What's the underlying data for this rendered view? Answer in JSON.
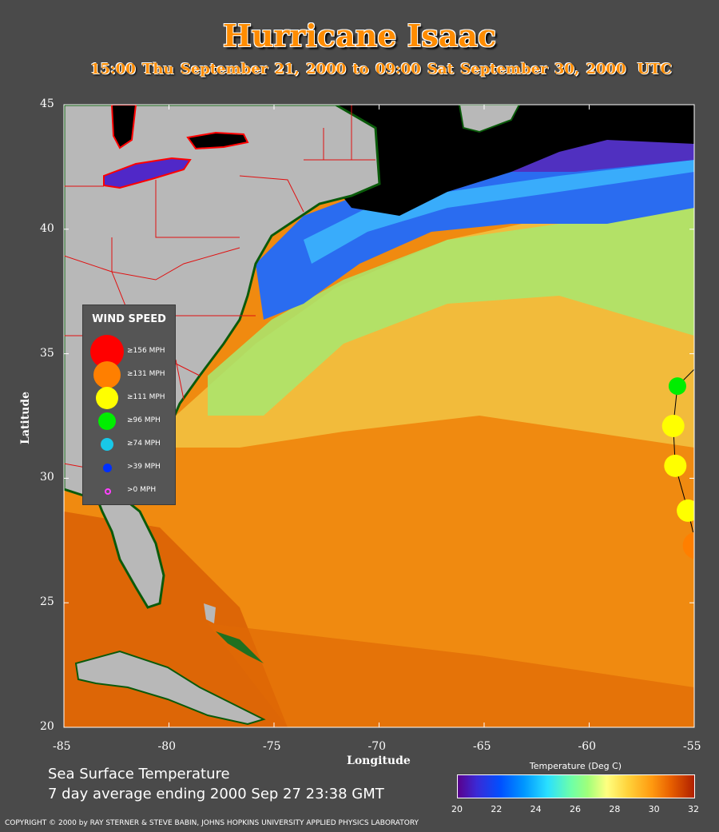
{
  "title": "Hurricane Isaac",
  "subtitle": "15:00 Thu September 21, 2000 to 09:00 Sat September 30, 2000",
  "subtitle_tz": "UTC",
  "map": {
    "x_axis_label": "Longitude",
    "y_axis_label": "Latitude",
    "lon_range": [
      -85,
      -55
    ],
    "lat_range": [
      20,
      45
    ],
    "x_ticks": [
      "-85",
      "-80",
      "-75",
      "-70",
      "-65",
      "-60",
      "-55"
    ],
    "y_ticks": [
      "45",
      "40",
      "35",
      "30",
      "25",
      "20"
    ],
    "track_points": [
      {
        "lon": -55.8,
        "lat": 33.7,
        "category": "ge96"
      },
      {
        "lon": -56.0,
        "lat": 32.1,
        "category": "ge111"
      },
      {
        "lon": -55.9,
        "lat": 30.5,
        "category": "ge111"
      },
      {
        "lon": -55.3,
        "lat": 28.7,
        "category": "ge111"
      },
      {
        "lon": -54.9,
        "lat": 27.3,
        "category": "ge131"
      }
    ]
  },
  "legend": {
    "title": "WIND SPEED",
    "items": [
      {
        "id": "ge156",
        "label": "≥156 MPH",
        "color": "#ff0000",
        "size": 42
      },
      {
        "id": "ge131",
        "label": "≥131 MPH",
        "color": "#ff7f00",
        "size": 34
      },
      {
        "id": "ge111",
        "label": "≥111 MPH",
        "color": "#ffff00",
        "size": 28
      },
      {
        "id": "ge96",
        "label": "≥96 MPH",
        "color": "#00ee00",
        "size": 22
      },
      {
        "id": "ge74",
        "label": "≥74 MPH",
        "color": "#18c8e8",
        "size": 16
      },
      {
        "id": "gt39",
        "label": ">39 MPH",
        "color": "#0030ff",
        "size": 11
      },
      {
        "id": "gt0",
        "label": ">0 MPH",
        "color": "#ff40ff",
        "size": 7
      }
    ]
  },
  "footer": {
    "line1": "Sea Surface Temperature",
    "line2": "7 day average ending 2000 Sep 27 23:38 GMT"
  },
  "colorbar": {
    "title": "Temperature (Deg C)",
    "ticks": [
      "20",
      "22",
      "24",
      "26",
      "28",
      "30",
      "32"
    ]
  },
  "copyright": "COPYRIGHT © 2000 by RAY STERNER & STEVE BABIN, JOHNS HOPKINS UNIVERSITY APPLIED PHYSICS LABORATORY",
  "colors": {
    "title": "#ff8c00",
    "background": "#4a4a4a",
    "land": "#b8b8b8",
    "cold_water": "#000000",
    "warm_water": "#f08000",
    "state_borders": "#ff0000"
  }
}
